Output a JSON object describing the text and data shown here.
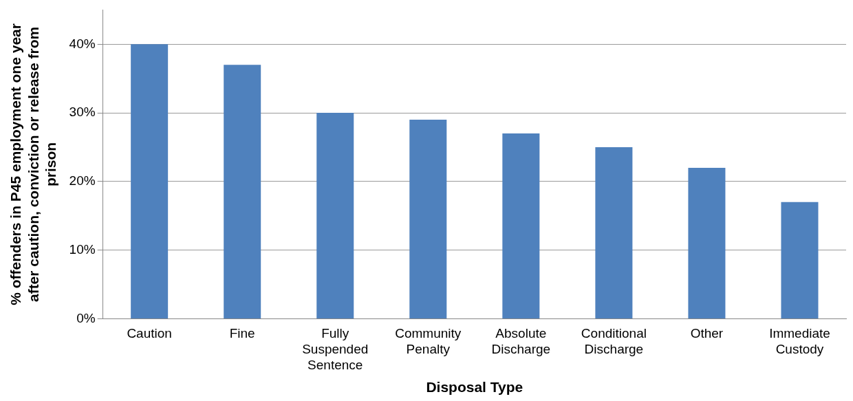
{
  "chart_data": {
    "type": "bar",
    "xlabel": "Disposal Type",
    "ylabel": "% offenders in P45 employment one year after caution, conviction or release from prison",
    "categories": [
      "Caution",
      "Fine",
      "Fully Suspended Sentence",
      "Community Penalty",
      "Absolute Discharge",
      "Conditional Discharge",
      "Other",
      "Immediate Custody"
    ],
    "values": [
      40,
      37,
      30,
      29,
      27,
      25,
      22,
      17
    ],
    "color": "#4f81bd",
    "ylim": [
      0,
      45
    ],
    "yticks": [
      {
        "value": 0,
        "label": "0%"
      },
      {
        "value": 10,
        "label": "10%"
      },
      {
        "value": 20,
        "label": "20%"
      },
      {
        "value": 30,
        "label": "30%"
      },
      {
        "value": 40,
        "label": "40%"
      }
    ],
    "grid": "y",
    "legend": false
  }
}
